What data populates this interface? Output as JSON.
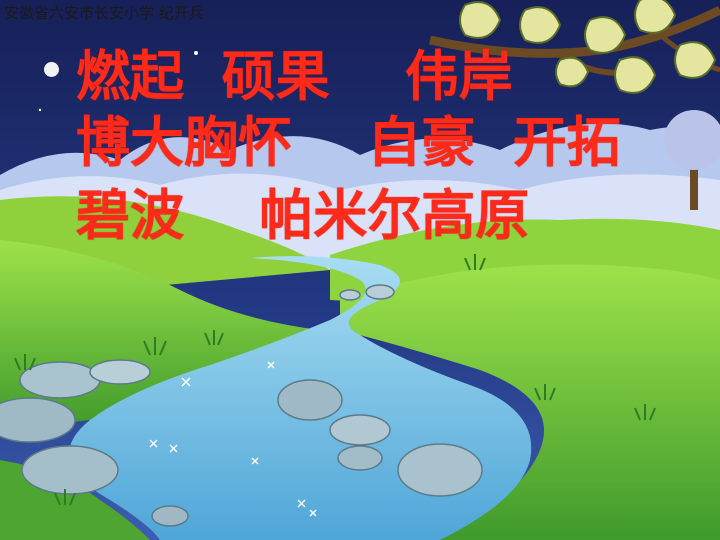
{
  "watermark": "安徽省六安市长安小学 纪开兵",
  "lines": [
    "燃起  硕果    伟岸",
    "博大胸怀    自豪  开拓",
    "碧波    帕米尔高原"
  ],
  "colors": {
    "text": "#ff2a1a",
    "sky": "#1b2a6b",
    "grass": "#7cc43a",
    "river": "#7ec6e8"
  }
}
